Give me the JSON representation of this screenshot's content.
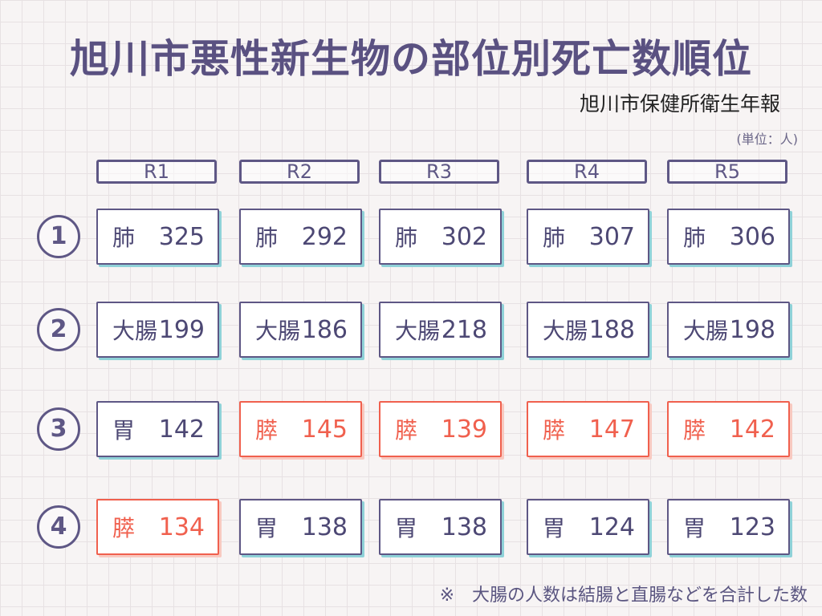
{
  "header": {
    "title": "旭川市悪性新生物の部位別死亡数順位",
    "source": "旭川市保健所衛生年報",
    "unit": "(単位：人)"
  },
  "footer": {
    "note": "※　大腸の人数は結腸と直腸などを合計した数"
  },
  "chart_data": {
    "type": "table",
    "columns": [
      "R1",
      "R2",
      "R3",
      "R4",
      "R5"
    ],
    "rank_labels": [
      "1",
      "2",
      "3",
      "4"
    ],
    "highlight_color": "#f0604e",
    "rows": [
      [
        {
          "site": "肺",
          "value": "325",
          "highlight": false
        },
        {
          "site": "肺",
          "value": "292",
          "highlight": false
        },
        {
          "site": "肺",
          "value": "302",
          "highlight": false
        },
        {
          "site": "肺",
          "value": "307",
          "highlight": false
        },
        {
          "site": "肺",
          "value": "306",
          "highlight": false
        }
      ],
      [
        {
          "site": "大腸",
          "value": "199",
          "highlight": false
        },
        {
          "site": "大腸",
          "value": "186",
          "highlight": false
        },
        {
          "site": "大腸",
          "value": "218",
          "highlight": false
        },
        {
          "site": "大腸",
          "value": "188",
          "highlight": false
        },
        {
          "site": "大腸",
          "value": "198",
          "highlight": false
        }
      ],
      [
        {
          "site": "胃",
          "value": "142",
          "highlight": false
        },
        {
          "site": "膵",
          "value": "145",
          "highlight": true
        },
        {
          "site": "膵",
          "value": "139",
          "highlight": true
        },
        {
          "site": "膵",
          "value": "147",
          "highlight": true
        },
        {
          "site": "膵",
          "value": "142",
          "highlight": true
        }
      ],
      [
        {
          "site": "膵",
          "value": "134",
          "highlight": true
        },
        {
          "site": "胃",
          "value": "138",
          "highlight": false
        },
        {
          "site": "胃",
          "value": "138",
          "highlight": false
        },
        {
          "site": "胃",
          "value": "124",
          "highlight": false
        },
        {
          "site": "胃",
          "value": "123",
          "highlight": false
        }
      ]
    ]
  }
}
